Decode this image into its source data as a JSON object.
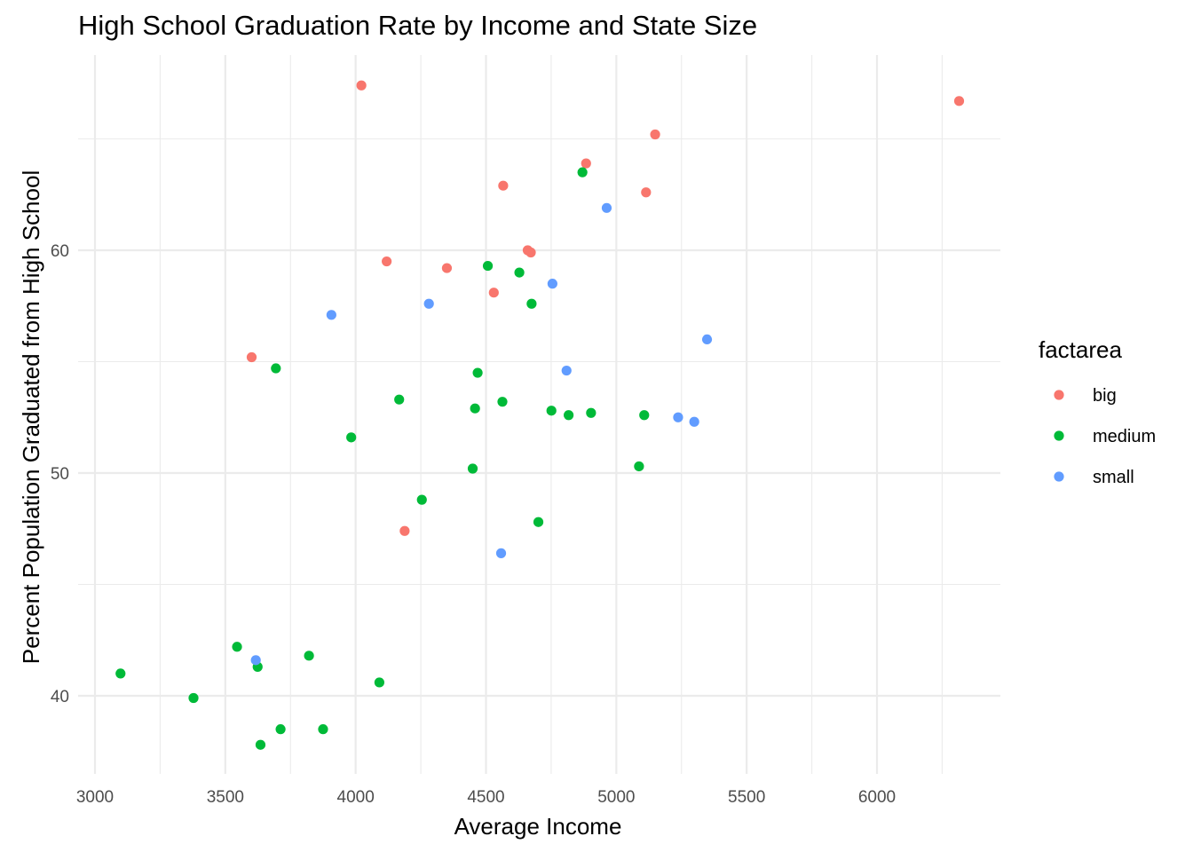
{
  "chart_data": {
    "type": "scatter",
    "title": "High School Graduation Rate by Income and State Size",
    "xlabel": "Average Income",
    "ylabel": "Percent Population Graduated from High School",
    "xlim": [
      2950,
      6450
    ],
    "ylim": [
      36.5,
      68.8
    ],
    "x_ticks": [
      3000,
      3500,
      4000,
      4500,
      5000,
      5500,
      6000
    ],
    "y_ticks": [
      40,
      50,
      60
    ],
    "grid": true,
    "legend": {
      "title": "factarea",
      "position": "right",
      "entries": [
        {
          "label": "big",
          "color": "#F8766D"
        },
        {
          "label": "medium",
          "color": "#00BA38"
        },
        {
          "label": "small",
          "color": "#619CFF"
        }
      ]
    },
    "series": [
      {
        "name": "big",
        "color": "#F8766D",
        "points": [
          [
            4022,
            67.4
          ],
          [
            6315,
            66.7
          ],
          [
            5149,
            65.2
          ],
          [
            4884,
            63.9
          ],
          [
            4566,
            62.9
          ],
          [
            5114,
            62.6
          ],
          [
            4660,
            60.0
          ],
          [
            4672,
            59.9
          ],
          [
            4119,
            59.5
          ],
          [
            4350,
            59.2
          ],
          [
            4530,
            58.1
          ],
          [
            3601,
            55.2
          ],
          [
            4188,
            47.4
          ]
        ]
      },
      {
        "name": "medium",
        "color": "#00BA38",
        "points": [
          [
            4870,
            63.5
          ],
          [
            4507,
            59.3
          ],
          [
            4628,
            59.0
          ],
          [
            4675,
            57.6
          ],
          [
            3694,
            54.7
          ],
          [
            4468,
            54.5
          ],
          [
            4167,
            53.3
          ],
          [
            4563,
            53.2
          ],
          [
            4458,
            52.9
          ],
          [
            4751,
            52.8
          ],
          [
            4903,
            52.7
          ],
          [
            4817,
            52.6
          ],
          [
            5107,
            52.6
          ],
          [
            3983,
            51.6
          ],
          [
            4449,
            50.2
          ],
          [
            5087,
            50.3
          ],
          [
            4254,
            48.8
          ],
          [
            4701,
            47.8
          ],
          [
            3545,
            42.2
          ],
          [
            3821,
            41.8
          ],
          [
            3624,
            41.3
          ],
          [
            3098,
            41.0
          ],
          [
            4091,
            40.6
          ],
          [
            3378,
            39.9
          ],
          [
            3712,
            38.5
          ],
          [
            3875,
            38.5
          ],
          [
            3635,
            37.8
          ]
        ]
      },
      {
        "name": "small",
        "color": "#619CFF",
        "points": [
          [
            4963,
            61.9
          ],
          [
            4281,
            57.6
          ],
          [
            3907,
            57.1
          ],
          [
            4755,
            58.5
          ],
          [
            5348,
            56.0
          ],
          [
            4809,
            54.6
          ],
          [
            5237,
            52.5
          ],
          [
            5299,
            52.3
          ],
          [
            4558,
            46.4
          ],
          [
            3617,
            41.6
          ]
        ]
      }
    ]
  }
}
